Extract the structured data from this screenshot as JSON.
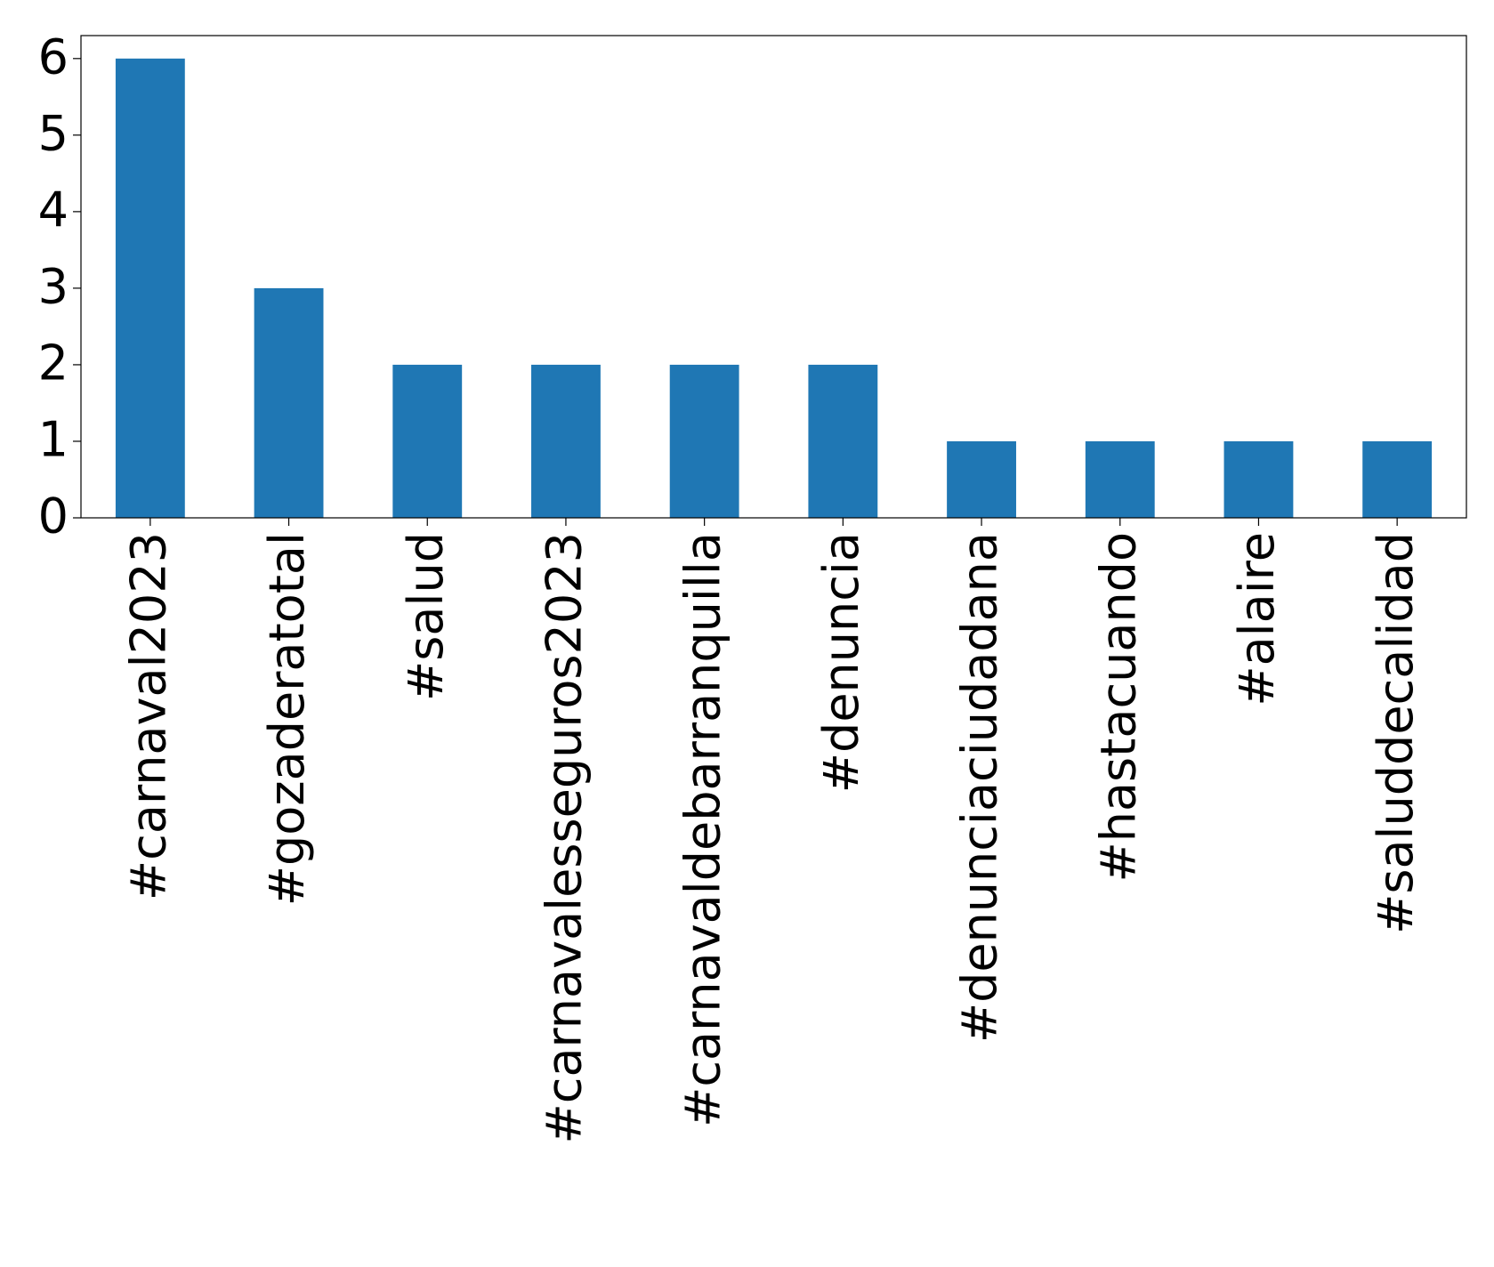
{
  "chart_data": {
    "type": "bar",
    "categories": [
      "#carnaval2023",
      "#gozaderatotal",
      "#salud",
      "#carnavalesseguros2023",
      "#carnavaldebarranquilla",
      "#denuncia",
      "#denunciaciudadana",
      "#hastacuando",
      "#alaire",
      "#saluddecalidad"
    ],
    "values": [
      6,
      3,
      2,
      2,
      2,
      2,
      1,
      1,
      1,
      1
    ],
    "color": "#1f77b4",
    "ylim": [
      0,
      6.3
    ],
    "yticks": [
      0,
      1,
      2,
      3,
      4,
      5,
      6
    ],
    "grid": false
  }
}
